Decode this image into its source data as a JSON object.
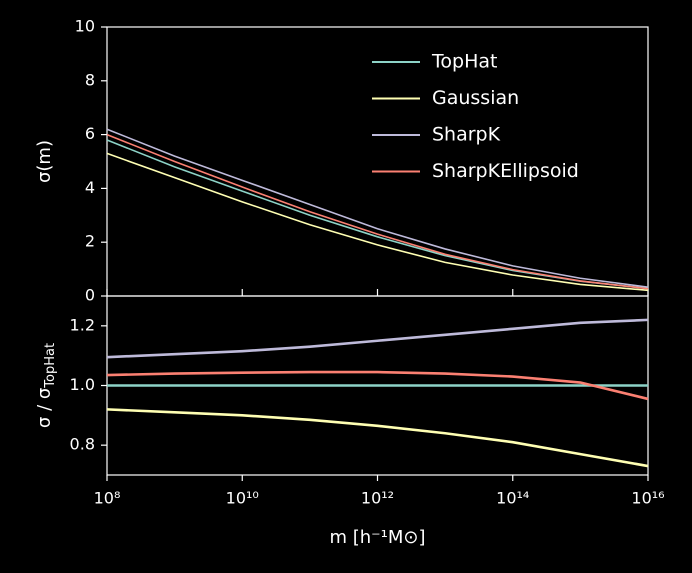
{
  "chart_data": [
    {
      "type": "line",
      "ylabel": "σ(m)",
      "xscale": "log",
      "x": [
        100000000.0,
        1000000000.0,
        10000000000.0,
        100000000000.0,
        1000000000000.0,
        10000000000000.0,
        100000000000000.0,
        1000000000000000.0,
        1e+16
      ],
      "xlim": [
        100000000.0,
        1e+16
      ],
      "xticks": [
        100000000.0,
        10000000000.0,
        1000000000000.0,
        100000000000000.0,
        1e+16
      ],
      "ylim": [
        0,
        10
      ],
      "yticks": [
        0,
        2,
        4,
        6,
        8,
        10
      ],
      "legend": "upper right",
      "series": [
        {
          "name": "TopHat",
          "color": "#8dd3c7",
          "values": [
            5.8,
            4.8,
            3.9,
            3.0,
            2.2,
            1.5,
            0.95,
            0.55,
            0.28
          ]
        },
        {
          "name": "Gaussian",
          "color": "#ffffb3",
          "values": [
            5.3,
            4.4,
            3.5,
            2.65,
            1.9,
            1.25,
            0.78,
            0.43,
            0.21
          ]
        },
        {
          "name": "SharpK",
          "color": "#bebada",
          "values": [
            6.2,
            5.2,
            4.3,
            3.4,
            2.5,
            1.75,
            1.12,
            0.66,
            0.33
          ]
        },
        {
          "name": "SharpKEllipsoid",
          "color": "#fb8072",
          "values": [
            6.0,
            5.0,
            4.05,
            3.13,
            2.3,
            1.55,
            0.98,
            0.56,
            0.27
          ]
        }
      ]
    },
    {
      "type": "line",
      "ylabel": "σ / σ",
      "ylabel_sub": "TopHat",
      "xlabel": "m [h⁻¹M⊙]",
      "xscale": "log",
      "x": [
        100000000.0,
        1000000000.0,
        10000000000.0,
        100000000000.0,
        1000000000000.0,
        10000000000000.0,
        100000000000000.0,
        1000000000000000.0,
        1e+16
      ],
      "xlim": [
        100000000.0,
        1e+16
      ],
      "xticks": [
        {
          "value": 100000000.0,
          "label": "10⁸"
        },
        {
          "value": 10000000000.0,
          "label": "10¹⁰"
        },
        {
          "value": 1000000000000.0,
          "label": "10¹²"
        },
        {
          "value": 100000000000000.0,
          "label": "10¹⁴"
        },
        {
          "value": 1e+16,
          "label": "10¹⁶"
        }
      ],
      "ylim": [
        0.7,
        1.3
      ],
      "yticks": [
        0.8,
        {
          "value": 1.0,
          "label": "1.0"
        },
        1.2
      ],
      "series": [
        {
          "color": "#8dd3c7",
          "values": [
            1,
            1,
            1,
            1,
            1,
            1,
            1,
            1,
            1
          ]
        },
        {
          "color": "#ffffb3",
          "values": [
            0.92,
            0.91,
            0.9,
            0.885,
            0.865,
            0.84,
            0.81,
            0.77,
            0.73
          ]
        },
        {
          "color": "#bebada",
          "values": [
            1.095,
            1.105,
            1.115,
            1.13,
            1.15,
            1.17,
            1.19,
            1.21,
            1.22
          ]
        },
        {
          "color": "#fb8072",
          "values": [
            1.035,
            1.04,
            1.043,
            1.045,
            1.045,
            1.04,
            1.03,
            1.01,
            0.955
          ]
        }
      ]
    }
  ]
}
